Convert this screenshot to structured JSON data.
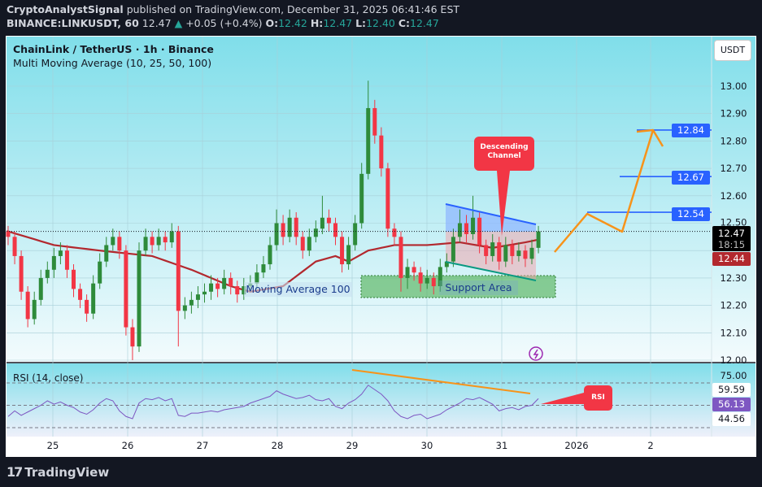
{
  "header": {
    "author": "CryptoAnalystSignal",
    "published_text": "published on TradingView.com, December 31, 2025 06:41:46 EST",
    "symbol": "BINANCE:LINKUSDT, 60",
    "last": "12.47",
    "change": "+0.05 (+0.4%)",
    "o_label": "O:",
    "o": "12.42",
    "h_label": "H:",
    "h": "12.47",
    "l_label": "L:",
    "l": "12.40",
    "c_label": "C:",
    "c": "12.47",
    "up_arrow_icon": "triangle-up"
  },
  "legend": {
    "title": "ChainLink / TetherUS · 1h · Binance",
    "indicator": "Multi Moving Average (10, 25, 50, 100)",
    "rsi": "RSI (14, close)"
  },
  "price_axis": {
    "currency_button": "USDT",
    "ticks": [
      "13.00",
      "12.90",
      "12.80",
      "12.70",
      "12.60",
      "12.50",
      "12.30",
      "12.20",
      "12.10",
      "12.00"
    ],
    "tags": {
      "target3": "12.84",
      "target2": "12.67",
      "target1": "12.54",
      "last_price": "12.47",
      "countdown": "18:15",
      "ma100": "12.44"
    },
    "rsi_ticks": [
      "75.00"
    ],
    "rsi_tags": {
      "upper": "59.59",
      "value": "56.13",
      "lower": "44.56"
    }
  },
  "time_axis": [
    "25",
    "26",
    "27",
    "28",
    "29",
    "30",
    "31",
    "2026",
    "2"
  ],
  "annotations": {
    "descending_channel": "Descending\nChannel",
    "support_area": "Support Area",
    "moving_average": "Moving Average 100",
    "rsi_callout": "RSI"
  },
  "colors": {
    "up": "#2e8b3a",
    "down": "#f23645",
    "ma100": "#b2282e",
    "target_line": "#2962ff",
    "projection": "#f7931a",
    "rsi": "#7e57c2",
    "support": "#4caf50",
    "channel_lower": "#089981"
  },
  "footer": {
    "brand": "TradingView"
  },
  "chart_data": {
    "type": "candlestick",
    "title": "ChainLink / TetherUS · 1h · Binance",
    "ylim": [
      12.0,
      13.0
    ],
    "x_ticks": [
      "25",
      "26",
      "27",
      "28",
      "29",
      "30",
      "31",
      "2026",
      "2"
    ],
    "candles": [
      [
        12.47,
        12.49,
        12.42,
        12.45
      ],
      [
        12.45,
        12.47,
        12.35,
        12.38
      ],
      [
        12.38,
        12.4,
        12.22,
        12.25
      ],
      [
        12.25,
        12.27,
        12.12,
        12.15
      ],
      [
        12.15,
        12.25,
        12.13,
        12.22
      ],
      [
        12.22,
        12.33,
        12.2,
        12.3
      ],
      [
        12.3,
        12.36,
        12.28,
        12.33
      ],
      [
        12.33,
        12.41,
        12.3,
        12.38
      ],
      [
        12.38,
        12.43,
        12.35,
        12.4
      ],
      [
        12.4,
        12.42,
        12.3,
        12.33
      ],
      [
        12.33,
        12.35,
        12.23,
        12.26
      ],
      [
        12.26,
        12.28,
        12.19,
        12.22
      ],
      [
        12.22,
        12.24,
        12.14,
        12.17
      ],
      [
        12.17,
        12.31,
        12.15,
        12.28
      ],
      [
        12.28,
        12.39,
        12.26,
        12.36
      ],
      [
        12.36,
        12.45,
        12.34,
        12.42
      ],
      [
        12.42,
        12.48,
        12.4,
        12.45
      ],
      [
        12.45,
        12.47,
        12.37,
        12.4
      ],
      [
        12.4,
        12.42,
        12.09,
        12.12
      ],
      [
        12.12,
        12.15,
        12.0,
        12.05
      ],
      [
        12.05,
        12.43,
        12.03,
        12.4
      ],
      [
        12.4,
        12.48,
        12.38,
        12.45
      ],
      [
        12.45,
        12.47,
        12.39,
        12.42
      ],
      [
        12.42,
        12.48,
        12.4,
        12.45
      ],
      [
        12.45,
        12.47,
        12.4,
        12.43
      ],
      [
        12.43,
        12.5,
        12.41,
        12.47
      ],
      [
        12.47,
        12.49,
        12.05,
        12.18
      ],
      [
        12.18,
        12.23,
        12.15,
        12.2
      ],
      [
        12.2,
        12.25,
        12.17,
        12.22
      ],
      [
        12.22,
        12.27,
        12.19,
        12.24
      ],
      [
        12.24,
        12.28,
        12.21,
        12.25
      ],
      [
        12.25,
        12.31,
        12.22,
        12.28
      ],
      [
        12.28,
        12.3,
        12.23,
        12.26
      ],
      [
        12.26,
        12.33,
        12.24,
        12.3
      ],
      [
        12.3,
        12.32,
        12.24,
        12.27
      ],
      [
        12.27,
        12.29,
        12.21,
        12.24
      ],
      [
        12.24,
        12.3,
        12.22,
        12.27
      ],
      [
        12.27,
        12.31,
        12.25,
        12.28
      ],
      [
        12.28,
        12.35,
        12.26,
        12.32
      ],
      [
        12.32,
        12.38,
        12.3,
        12.35
      ],
      [
        12.35,
        12.45,
        12.33,
        12.42
      ],
      [
        12.42,
        12.55,
        12.4,
        12.5
      ],
      [
        12.5,
        12.53,
        12.42,
        12.45
      ],
      [
        12.45,
        12.55,
        12.43,
        12.52
      ],
      [
        12.52,
        12.54,
        12.42,
        12.45
      ],
      [
        12.45,
        12.47,
        12.37,
        12.4
      ],
      [
        12.4,
        12.48,
        12.38,
        12.45
      ],
      [
        12.45,
        12.51,
        12.43,
        12.48
      ],
      [
        12.48,
        12.6,
        12.46,
        12.52
      ],
      [
        12.52,
        12.55,
        12.47,
        12.5
      ],
      [
        12.5,
        12.52,
        12.42,
        12.45
      ],
      [
        12.45,
        12.47,
        12.32,
        12.35
      ],
      [
        12.35,
        12.45,
        12.33,
        12.42
      ],
      [
        12.42,
        12.53,
        12.4,
        12.5
      ],
      [
        12.5,
        12.72,
        12.48,
        12.68
      ],
      [
        12.68,
        13.02,
        12.66,
        12.92
      ],
      [
        12.92,
        12.95,
        12.79,
        12.82
      ],
      [
        12.82,
        12.85,
        12.67,
        12.7
      ],
      [
        12.7,
        12.72,
        12.45,
        12.48
      ],
      [
        12.48,
        12.5,
        12.42,
        12.45
      ],
      [
        12.45,
        12.47,
        12.25,
        12.3
      ],
      [
        12.3,
        12.37,
        12.26,
        12.34
      ],
      [
        12.34,
        12.36,
        12.29,
        12.32
      ],
      [
        12.32,
        12.34,
        12.25,
        12.28
      ],
      [
        12.28,
        12.33,
        12.26,
        12.3
      ],
      [
        12.3,
        12.32,
        12.24,
        12.27
      ],
      [
        12.27,
        12.37,
        12.25,
        12.34
      ],
      [
        12.34,
        12.39,
        12.32,
        12.36
      ],
      [
        12.36,
        12.48,
        12.34,
        12.45
      ],
      [
        12.45,
        12.55,
        12.43,
        12.5
      ],
      [
        12.5,
        12.53,
        12.43,
        12.46
      ],
      [
        12.46,
        12.6,
        12.44,
        12.52
      ],
      [
        12.52,
        12.54,
        12.39,
        12.42
      ],
      [
        12.42,
        12.44,
        12.35,
        12.38
      ],
      [
        12.38,
        12.46,
        12.36,
        12.43
      ],
      [
        12.43,
        12.45,
        12.33,
        12.36
      ],
      [
        12.36,
        12.45,
        12.34,
        12.42
      ],
      [
        12.42,
        12.44,
        12.35,
        12.38
      ],
      [
        12.38,
        12.43,
        12.36,
        12.4
      ],
      [
        12.4,
        12.42,
        12.34,
        12.37
      ],
      [
        12.37,
        12.44,
        12.35,
        12.41
      ],
      [
        12.41,
        12.49,
        12.39,
        12.47
      ]
    ],
    "ma100": [
      [
        0,
        12.47
      ],
      [
        7,
        12.42
      ],
      [
        14,
        12.4
      ],
      [
        22,
        12.38
      ],
      [
        28,
        12.33
      ],
      [
        34,
        12.27
      ],
      [
        37,
        12.25
      ],
      [
        42,
        12.27
      ],
      [
        47,
        12.36
      ],
      [
        50,
        12.38
      ],
      [
        52,
        12.36
      ],
      [
        55,
        12.4
      ],
      [
        59,
        12.42
      ],
      [
        64,
        12.42
      ],
      [
        69,
        12.43
      ],
      [
        74,
        12.41
      ],
      [
        79,
        12.43
      ],
      [
        81,
        12.44
      ]
    ],
    "rsi": [
      40,
      45,
      41,
      44,
      47,
      50,
      54,
      51,
      53,
      50,
      48,
      44,
      42,
      46,
      52,
      56,
      54,
      45,
      40,
      38,
      52,
      56,
      55,
      57,
      54,
      56,
      41,
      40,
      43,
      43,
      44,
      45,
      44,
      46,
      47,
      48,
      49,
      52,
      54,
      56,
      58,
      63,
      60,
      58,
      56,
      57,
      59,
      55,
      54,
      56,
      49,
      47,
      52,
      55,
      60,
      68,
      64,
      60,
      54,
      45,
      40,
      38,
      41,
      42,
      38,
      40,
      42,
      46,
      49,
      52,
      56,
      55,
      57,
      54,
      51,
      45,
      47,
      48,
      46,
      49,
      50,
      56
    ],
    "rsi_bands": [
      70,
      50,
      30
    ],
    "targets": [
      12.54,
      12.67,
      12.84
    ]
  }
}
